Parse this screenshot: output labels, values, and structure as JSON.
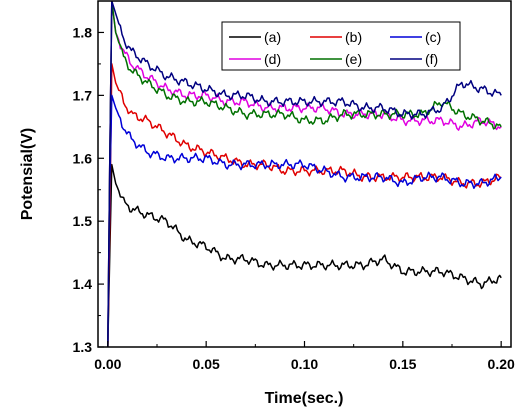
{
  "chart_data": {
    "type": "line",
    "xlabel": "Time(sec.)",
    "ylabel": "Potensial(V)",
    "xlim": [
      -0.005,
      0.205
    ],
    "ylim": [
      1.3,
      1.85
    ],
    "x_ticks": [
      0.0,
      0.05,
      0.1,
      0.15,
      0.2
    ],
    "x_tick_labels": [
      "0.00",
      "0.05",
      "0.10",
      "0.15",
      "0.20"
    ],
    "y_ticks": [
      1.3,
      1.4,
      1.5,
      1.6,
      1.7,
      1.8
    ],
    "y_tick_labels": [
      "1.3",
      "1.4",
      "1.5",
      "1.6",
      "1.7",
      "1.8"
    ],
    "grid": false,
    "legend_position": "top-right",
    "series": [
      {
        "name": "(a)",
        "color": "#000000",
        "x": [
          0.0,
          0.001,
          0.002,
          0.004,
          0.008,
          0.012,
          0.02,
          0.03,
          0.04,
          0.05,
          0.06,
          0.07,
          0.08,
          0.09,
          0.1,
          0.11,
          0.12,
          0.13,
          0.14,
          0.15,
          0.16,
          0.17,
          0.18,
          0.19,
          0.2
        ],
        "y": [
          1.3,
          1.45,
          1.59,
          1.56,
          1.53,
          1.52,
          1.51,
          1.5,
          1.47,
          1.46,
          1.44,
          1.44,
          1.43,
          1.43,
          1.43,
          1.43,
          1.43,
          1.43,
          1.44,
          1.42,
          1.42,
          1.42,
          1.41,
          1.4,
          1.41
        ]
      },
      {
        "name": "(b)",
        "color": "#e00000",
        "x": [
          0.0,
          0.001,
          0.002,
          0.004,
          0.008,
          0.012,
          0.02,
          0.03,
          0.04,
          0.05,
          0.06,
          0.07,
          0.08,
          0.09,
          0.1,
          0.11,
          0.12,
          0.13,
          0.14,
          0.15,
          0.16,
          0.17,
          0.18,
          0.19,
          0.2
        ],
        "y": [
          1.3,
          1.5,
          1.75,
          1.72,
          1.69,
          1.67,
          1.66,
          1.64,
          1.62,
          1.61,
          1.6,
          1.59,
          1.59,
          1.58,
          1.58,
          1.58,
          1.58,
          1.57,
          1.57,
          1.57,
          1.57,
          1.57,
          1.56,
          1.56,
          1.57
        ]
      },
      {
        "name": "(c)",
        "color": "#0000d8",
        "x": [
          0.0,
          0.001,
          0.002,
          0.004,
          0.008,
          0.012,
          0.02,
          0.03,
          0.04,
          0.05,
          0.06,
          0.07,
          0.08,
          0.09,
          0.1,
          0.11,
          0.12,
          0.13,
          0.14,
          0.15,
          0.16,
          0.17,
          0.18,
          0.19,
          0.2
        ],
        "y": [
          1.3,
          1.55,
          1.7,
          1.68,
          1.65,
          1.63,
          1.61,
          1.6,
          1.6,
          1.6,
          1.59,
          1.59,
          1.59,
          1.59,
          1.59,
          1.58,
          1.57,
          1.57,
          1.57,
          1.56,
          1.57,
          1.57,
          1.56,
          1.56,
          1.57
        ]
      },
      {
        "name": "(d)",
        "color": "#e000e0",
        "x": [
          0.0,
          0.001,
          0.002,
          0.004,
          0.008,
          0.012,
          0.02,
          0.03,
          0.04,
          0.05,
          0.06,
          0.07,
          0.08,
          0.09,
          0.1,
          0.11,
          0.12,
          0.13,
          0.14,
          0.15,
          0.16,
          0.17,
          0.18,
          0.19,
          0.2
        ],
        "y": [
          1.3,
          1.6,
          1.85,
          1.8,
          1.77,
          1.75,
          1.73,
          1.71,
          1.7,
          1.7,
          1.69,
          1.69,
          1.68,
          1.68,
          1.68,
          1.68,
          1.67,
          1.67,
          1.67,
          1.66,
          1.66,
          1.66,
          1.65,
          1.66,
          1.65
        ]
      },
      {
        "name": "(e)",
        "color": "#007000",
        "x": [
          0.0,
          0.001,
          0.002,
          0.004,
          0.008,
          0.012,
          0.02,
          0.03,
          0.04,
          0.05,
          0.06,
          0.07,
          0.08,
          0.09,
          0.1,
          0.11,
          0.12,
          0.13,
          0.14,
          0.15,
          0.16,
          0.17,
          0.18,
          0.19,
          0.2
        ],
        "y": [
          1.3,
          1.6,
          1.85,
          1.8,
          1.76,
          1.74,
          1.72,
          1.7,
          1.69,
          1.69,
          1.68,
          1.67,
          1.67,
          1.67,
          1.66,
          1.66,
          1.67,
          1.67,
          1.67,
          1.67,
          1.67,
          1.69,
          1.67,
          1.66,
          1.65
        ]
      },
      {
        "name": "(f)",
        "color": "#000080",
        "x": [
          0.0,
          0.001,
          0.002,
          0.004,
          0.008,
          0.012,
          0.02,
          0.03,
          0.04,
          0.05,
          0.06,
          0.07,
          0.08,
          0.09,
          0.1,
          0.11,
          0.12,
          0.13,
          0.14,
          0.15,
          0.16,
          0.17,
          0.18,
          0.19,
          0.2
        ],
        "y": [
          1.3,
          1.6,
          1.85,
          1.83,
          1.79,
          1.77,
          1.75,
          1.73,
          1.72,
          1.71,
          1.7,
          1.7,
          1.69,
          1.69,
          1.69,
          1.69,
          1.69,
          1.68,
          1.68,
          1.67,
          1.67,
          1.68,
          1.72,
          1.71,
          1.7
        ]
      }
    ]
  }
}
